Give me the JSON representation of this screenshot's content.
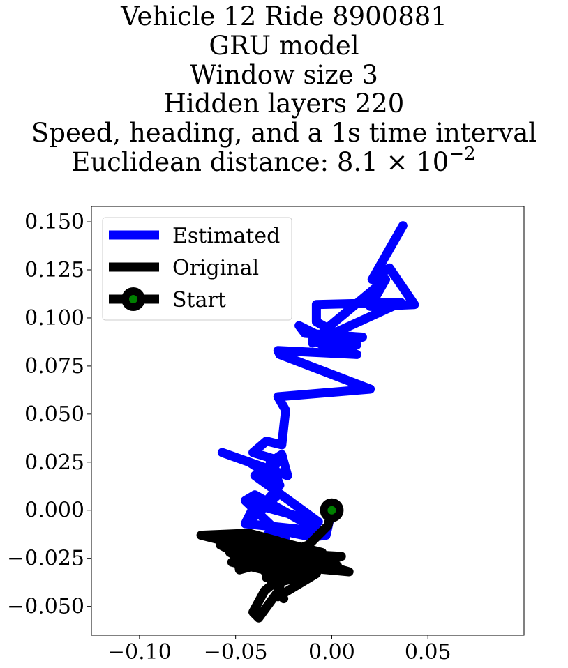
{
  "chart_data": {
    "type": "line",
    "title_lines": [
      "Vehicle 12 Ride 8900881",
      "GRU model",
      "Window size 3",
      "Hidden layers 220",
      "Speed, heading, and a 1s time interval",
      "Euclidean distance: 8.1 × 10"
    ],
    "title_exponent": "−2",
    "xlim": [
      -0.125,
      0.1
    ],
    "ylim": [
      -0.065,
      0.158
    ],
    "xticks": [
      -0.1,
      -0.05,
      0.0,
      0.05
    ],
    "xtick_labels": [
      "−0.10",
      "−0.05",
      "0.00",
      "0.05"
    ],
    "yticks": [
      0.15,
      0.125,
      0.1,
      0.075,
      0.05,
      0.025,
      0.0,
      -0.025,
      -0.05
    ],
    "ytick_labels": [
      "0.150",
      "0.125",
      "0.100",
      "0.075",
      "0.050",
      "0.025",
      "0.000",
      "−0.025",
      "−0.050"
    ],
    "legend_position": "upper-left",
    "grid": false,
    "series": [
      {
        "name": "Estimated",
        "color": "#0000ff",
        "x": [
          0.0,
          -0.003,
          -0.01,
          -0.02,
          -0.029,
          -0.033,
          -0.024,
          -0.045,
          -0.04,
          -0.006,
          -0.045,
          -0.04,
          -0.007,
          -0.04,
          -0.034,
          -0.028,
          -0.042,
          -0.027,
          -0.032,
          -0.026,
          -0.023,
          -0.057,
          -0.043,
          -0.032,
          -0.028,
          -0.041,
          -0.034,
          -0.026,
          -0.024,
          -0.028,
          0.02,
          -0.027,
          -0.028,
          0.013,
          -0.017,
          -0.014,
          0.016,
          -0.01,
          -0.005,
          0.013,
          -0.008,
          -0.008,
          0.036,
          -0.01,
          -0.002,
          0.028,
          0.02,
          0.043,
          0.03,
          0.021,
          0.037
        ],
        "y": [
          0.0,
          -0.013,
          -0.014,
          -0.012,
          -0.009,
          -0.012,
          -0.015,
          0.005,
          0.008,
          -0.011,
          -0.007,
          0.003,
          -0.006,
          0.018,
          0.02,
          0.008,
          -0.005,
          0.013,
          0.025,
          0.029,
          0.018,
          0.03,
          0.025,
          0.018,
          0.026,
          0.03,
          0.036,
          0.034,
          0.052,
          0.059,
          0.063,
          0.081,
          0.083,
          0.081,
          0.096,
          0.092,
          0.09,
          0.089,
          0.086,
          0.086,
          0.098,
          0.107,
          0.108,
          0.087,
          0.095,
          0.12,
          0.106,
          0.107,
          0.126,
          0.12,
          0.148
        ]
      },
      {
        "name": "Original",
        "color": "#000000",
        "x": [
          0.0,
          -0.002,
          -0.012,
          -0.02,
          -0.038,
          -0.041,
          -0.06,
          -0.068,
          -0.043,
          -0.028,
          -0.046,
          -0.005,
          -0.037,
          -0.041,
          -0.025,
          0.003,
          -0.029,
          -0.05,
          -0.031,
          -0.052,
          -0.028,
          -0.011,
          -0.034,
          -0.021,
          -0.021,
          -0.032,
          -0.042,
          -0.049,
          -0.048,
          -0.037,
          -0.03,
          0.009,
          -0.024,
          -0.053,
          -0.028,
          -0.018,
          -0.036,
          -0.03,
          -0.02,
          -0.032,
          0.005,
          -0.024,
          -0.038,
          -0.058,
          -0.045,
          -0.026,
          -0.008,
          -0.028,
          -0.025,
          -0.017,
          -0.021,
          -0.035,
          -0.041,
          -0.038,
          -0.027,
          -0.025
        ],
        "y": [
          0.0,
          -0.008,
          -0.018,
          -0.021,
          -0.02,
          -0.016,
          -0.015,
          -0.013,
          -0.012,
          -0.016,
          -0.02,
          -0.022,
          -0.014,
          -0.024,
          -0.02,
          -0.029,
          -0.024,
          -0.019,
          -0.032,
          -0.027,
          -0.02,
          -0.027,
          -0.035,
          -0.024,
          -0.031,
          -0.018,
          -0.026,
          -0.024,
          -0.031,
          -0.028,
          -0.021,
          -0.032,
          -0.029,
          -0.022,
          -0.035,
          -0.024,
          -0.03,
          -0.039,
          -0.027,
          -0.022,
          -0.024,
          -0.034,
          -0.026,
          -0.018,
          -0.025,
          -0.037,
          -0.033,
          -0.045,
          -0.028,
          -0.02,
          -0.03,
          -0.042,
          -0.053,
          -0.056,
          -0.041,
          -0.046
        ]
      }
    ],
    "start": {
      "x": 0.0,
      "y": 0.0,
      "marker_color": "#000000",
      "inner_color": "#008000"
    },
    "legend": [
      {
        "label": "Estimated",
        "color": "#0000ff",
        "marker": false
      },
      {
        "label": "Original",
        "color": "#000000",
        "marker": false
      },
      {
        "label": "Start",
        "color": "#000000",
        "marker": true,
        "marker_inner": "#008000"
      }
    ]
  }
}
